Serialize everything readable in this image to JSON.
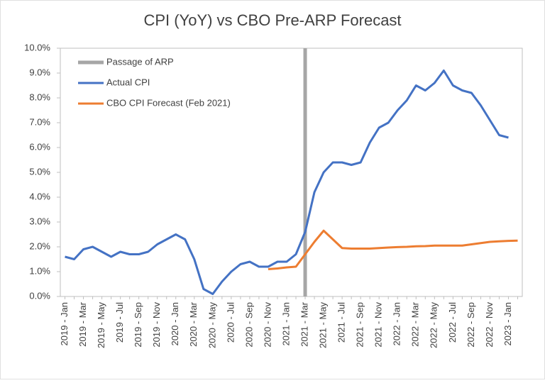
{
  "chart_data": {
    "type": "line",
    "title": "CPI (YoY) vs CBO Pre-ARP Forecast",
    "categories": [
      "2019 - Jan",
      null,
      "2019 - Mar",
      null,
      "2019 - May",
      null,
      "2019 - Jul",
      null,
      "2019 - Sep",
      null,
      "2019 - Nov",
      null,
      "2020 - Jan",
      null,
      "2020 - Mar",
      null,
      "2020 - May",
      null,
      "2020 - Jul",
      null,
      "2020 - Sep",
      null,
      "2020 - Nov",
      null,
      "2021 - Jan",
      null,
      "2021 - Mar",
      null,
      "2021 - May",
      null,
      "2021 - Jul",
      null,
      "2021 - Sep",
      null,
      "2021 - Nov",
      null,
      "2022 - Jan",
      null,
      "2022 - Mar",
      null,
      "2022 - May",
      null,
      "2022 - Jul",
      null,
      "2022 - Sep",
      null,
      "2022 - Nov",
      null,
      "2023 - Jan",
      null
    ],
    "series": [
      {
        "name": "Actual CPI",
        "color": "#4472c4",
        "values": [
          1.6,
          1.5,
          1.9,
          2.0,
          1.8,
          1.6,
          1.8,
          1.7,
          1.7,
          1.8,
          2.1,
          2.3,
          2.5,
          2.3,
          1.5,
          0.3,
          0.1,
          0.6,
          1.0,
          1.3,
          1.4,
          1.2,
          1.2,
          1.4,
          1.4,
          1.7,
          2.6,
          4.2,
          5.0,
          5.4,
          5.4,
          5.3,
          5.4,
          6.2,
          6.8,
          7.0,
          7.5,
          7.9,
          8.5,
          8.3,
          8.6,
          9.1,
          8.5,
          8.3,
          8.2,
          7.7,
          7.1,
          6.5,
          6.4,
          null
        ]
      },
      {
        "name": "CBO CPI Forecast (Feb 2021)",
        "color": "#ed7d31",
        "values": [
          null,
          null,
          null,
          null,
          null,
          null,
          null,
          null,
          null,
          null,
          null,
          null,
          null,
          null,
          null,
          null,
          null,
          null,
          null,
          null,
          null,
          null,
          1.1,
          1.13,
          1.17,
          1.2,
          1.7,
          2.2,
          2.65,
          2.3,
          1.95,
          1.93,
          1.93,
          1.93,
          1.95,
          1.97,
          1.99,
          2.0,
          2.02,
          2.03,
          2.05,
          2.05,
          2.05,
          2.05,
          2.1,
          2.15,
          2.2,
          2.22,
          2.24,
          2.25
        ]
      }
    ],
    "marker_line": {
      "label": "Passage of ARP",
      "x": "2021 - Mar",
      "color": "#a6a6a6"
    },
    "ylim": [
      0,
      10
    ],
    "yticks": [
      {
        "value": 0,
        "label": "0.0%"
      },
      {
        "value": 1,
        "label": "1.0%"
      },
      {
        "value": 2,
        "label": "2.0%"
      },
      {
        "value": 3,
        "label": "3.0%"
      },
      {
        "value": 4,
        "label": "4.0%"
      },
      {
        "value": 5,
        "label": "5.0%"
      },
      {
        "value": 6,
        "label": "6.0%"
      },
      {
        "value": 7,
        "label": "7.0%"
      },
      {
        "value": 8,
        "label": "8.0%"
      },
      {
        "value": 9,
        "label": "9.0%"
      },
      {
        "value": 10,
        "label": "10.0%"
      }
    ],
    "legend": "upper left"
  }
}
